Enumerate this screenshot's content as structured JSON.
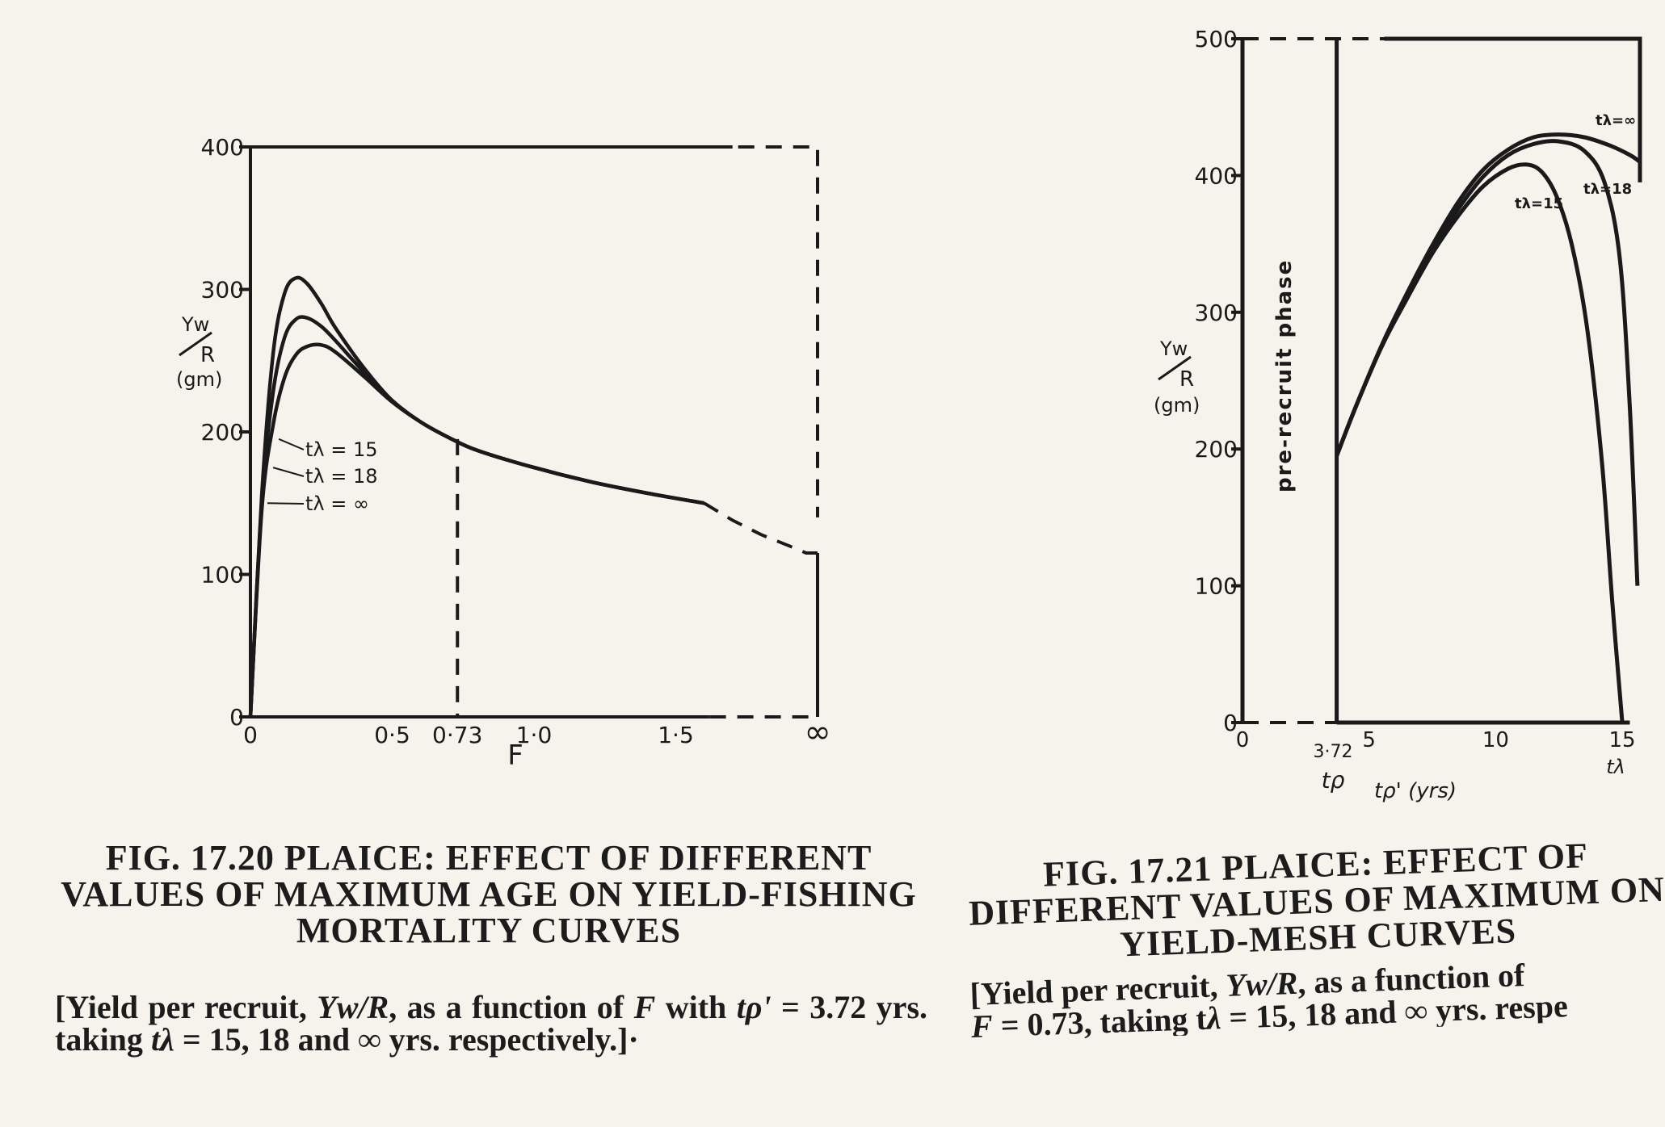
{
  "chart_data": [
    {
      "type": "line",
      "title": "FIG. 17.20 PLAICE: EFFECT OF DIFFERENT VALUES OF MAXIMUM AGE ON YIELD-FISHING MORTALITY CURVES",
      "caption": [
        "[Yield per recruit, ",
        "Yw/R",
        ", as a function of ",
        "F",
        " with ",
        "tρ'",
        " = 3.72 yrs. taking ",
        "tλ",
        " = 15, 18 and ∞ yrs. respectively.]·"
      ],
      "xlabel": "F",
      "ylabel": "Yw/R (gm)",
      "ylabel_parts": [
        "Yw",
        "R",
        "(gm)"
      ],
      "xlim": [
        0,
        2.0
      ],
      "ylim": [
        0,
        400
      ],
      "x_ticks": [
        {
          "value": 0,
          "label": "0"
        },
        {
          "value": 0.5,
          "label": "0·5"
        },
        {
          "value": 0.73,
          "label": "0·73"
        },
        {
          "value": 1.0,
          "label": "1·0"
        },
        {
          "value": 1.5,
          "label": "1·5"
        },
        {
          "value": 2.0,
          "label": "∞"
        }
      ],
      "y_ticks": [
        {
          "value": 0,
          "label": "0"
        },
        {
          "value": 100,
          "label": "100"
        },
        {
          "value": 200,
          "label": "200"
        },
        {
          "value": 300,
          "label": "300"
        },
        {
          "value": 400,
          "label": "400"
        }
      ],
      "reference_line": {
        "x": 0.73
      },
      "series": [
        {
          "name": "tλ = 15",
          "x": [
            0,
            0.04,
            0.08,
            0.12,
            0.16,
            0.2,
            0.25,
            0.3,
            0.4,
            0.5,
            0.6,
            0.7,
            0.8,
            1.0,
            1.2,
            1.4,
            1.6
          ],
          "y": [
            0,
            155,
            255,
            297,
            308,
            304,
            290,
            273,
            245,
            222,
            207,
            196,
            187,
            175,
            165,
            157,
            150
          ]
        },
        {
          "name": "tλ = 18",
          "x": [
            0,
            0.04,
            0.08,
            0.12,
            0.16,
            0.2,
            0.25,
            0.3,
            0.4,
            0.5,
            0.6,
            0.7,
            0.8,
            1.0,
            1.2,
            1.4,
            1.6
          ],
          "y": [
            0,
            150,
            228,
            266,
            279,
            280,
            274,
            264,
            242,
            222,
            207,
            196,
            187,
            175,
            165,
            157,
            150
          ]
        },
        {
          "name": "tλ = ∞",
          "x": [
            0,
            0.04,
            0.08,
            0.12,
            0.16,
            0.2,
            0.25,
            0.3,
            0.4,
            0.5,
            0.6,
            0.7,
            0.8,
            1.0,
            1.2,
            1.4,
            1.6
          ],
          "y": [
            0,
            145,
            205,
            238,
            254,
            260,
            261,
            256,
            239,
            221,
            207,
            196,
            187,
            175,
            165,
            157,
            150
          ]
        }
      ],
      "shared_tail": {
        "x": [
          1.6,
          1.7,
          1.8,
          1.9,
          1.96,
          2.0
        ],
        "y": [
          150,
          138,
          128,
          120,
          115,
          115
        ]
      },
      "legend_placement": "inline-left"
    },
    {
      "type": "line",
      "title": "FIG. 17.21 PLAICE: EFFECT OF DIFFERENT VALUES OF MAXIMUM ON YIELD-MESH CURVES",
      "caption": [
        "[Yield per recruit, ",
        "Yw/R",
        ", as a function of ",
        "F",
        " = 0.73, taking t",
        "λ",
        " = 15, 18 and ∞ yrs. respe"
      ],
      "xlabel": "tρ' (yrs)",
      "ylabel": "Yw/R (gm)",
      "ylabel_parts": [
        "Yw",
        "R",
        "(gm)"
      ],
      "region_label": "pre-recruit phase",
      "xlim": [
        0,
        15.7
      ],
      "ylim": [
        0,
        500
      ],
      "x_ticks": [
        {
          "value": 0,
          "label": "0"
        },
        {
          "value": 5,
          "label": "5"
        },
        {
          "value": 10,
          "label": "10"
        },
        {
          "value": 15,
          "label": "15"
        }
      ],
      "x_extra_labels": {
        "t_rho_value": "3·72",
        "t_rho": "tρ",
        "t_lambda": "tλ"
      },
      "y_ticks": [
        {
          "value": 0,
          "label": "0"
        },
        {
          "value": 100,
          "label": "100"
        },
        {
          "value": 200,
          "label": "200"
        },
        {
          "value": 300,
          "label": "300"
        },
        {
          "value": 400,
          "label": "400"
        },
        {
          "value": 500,
          "label": "500"
        }
      ],
      "series": [
        {
          "name": "tλ=15",
          "x": [
            3.72,
            4.5,
            5.5,
            6.5,
            7.5,
            8.5,
            9.5,
            10.5,
            11.2,
            11.8,
            12.4,
            13.0,
            13.6,
            14.2,
            14.6,
            15.0
          ],
          "y": [
            195,
            232,
            275,
            310,
            343,
            370,
            392,
            405,
            408,
            403,
            385,
            350,
            290,
            190,
            90,
            0
          ]
        },
        {
          "name": "tλ=18",
          "x": [
            3.72,
            4.5,
            5.5,
            6.5,
            7.5,
            8.5,
            9.5,
            10.5,
            11.5,
            12.5,
            13.5,
            14.3,
            14.9,
            15.3,
            15.6
          ],
          "y": [
            195,
            232,
            275,
            312,
            346,
            375,
            399,
            415,
            423,
            425,
            418,
            395,
            340,
            230,
            100
          ]
        },
        {
          "name": "tλ=∞",
          "x": [
            3.72,
            4.5,
            5.5,
            6.5,
            7.5,
            8.5,
            9.5,
            10.5,
            11.5,
            12.5,
            13.5,
            14.5,
            15.3,
            15.7
          ],
          "y": [
            195,
            232,
            276,
            314,
            349,
            380,
            404,
            419,
            428,
            430,
            428,
            422,
            415,
            410
          ]
        }
      ],
      "legend_placement": "inline-right"
    }
  ]
}
